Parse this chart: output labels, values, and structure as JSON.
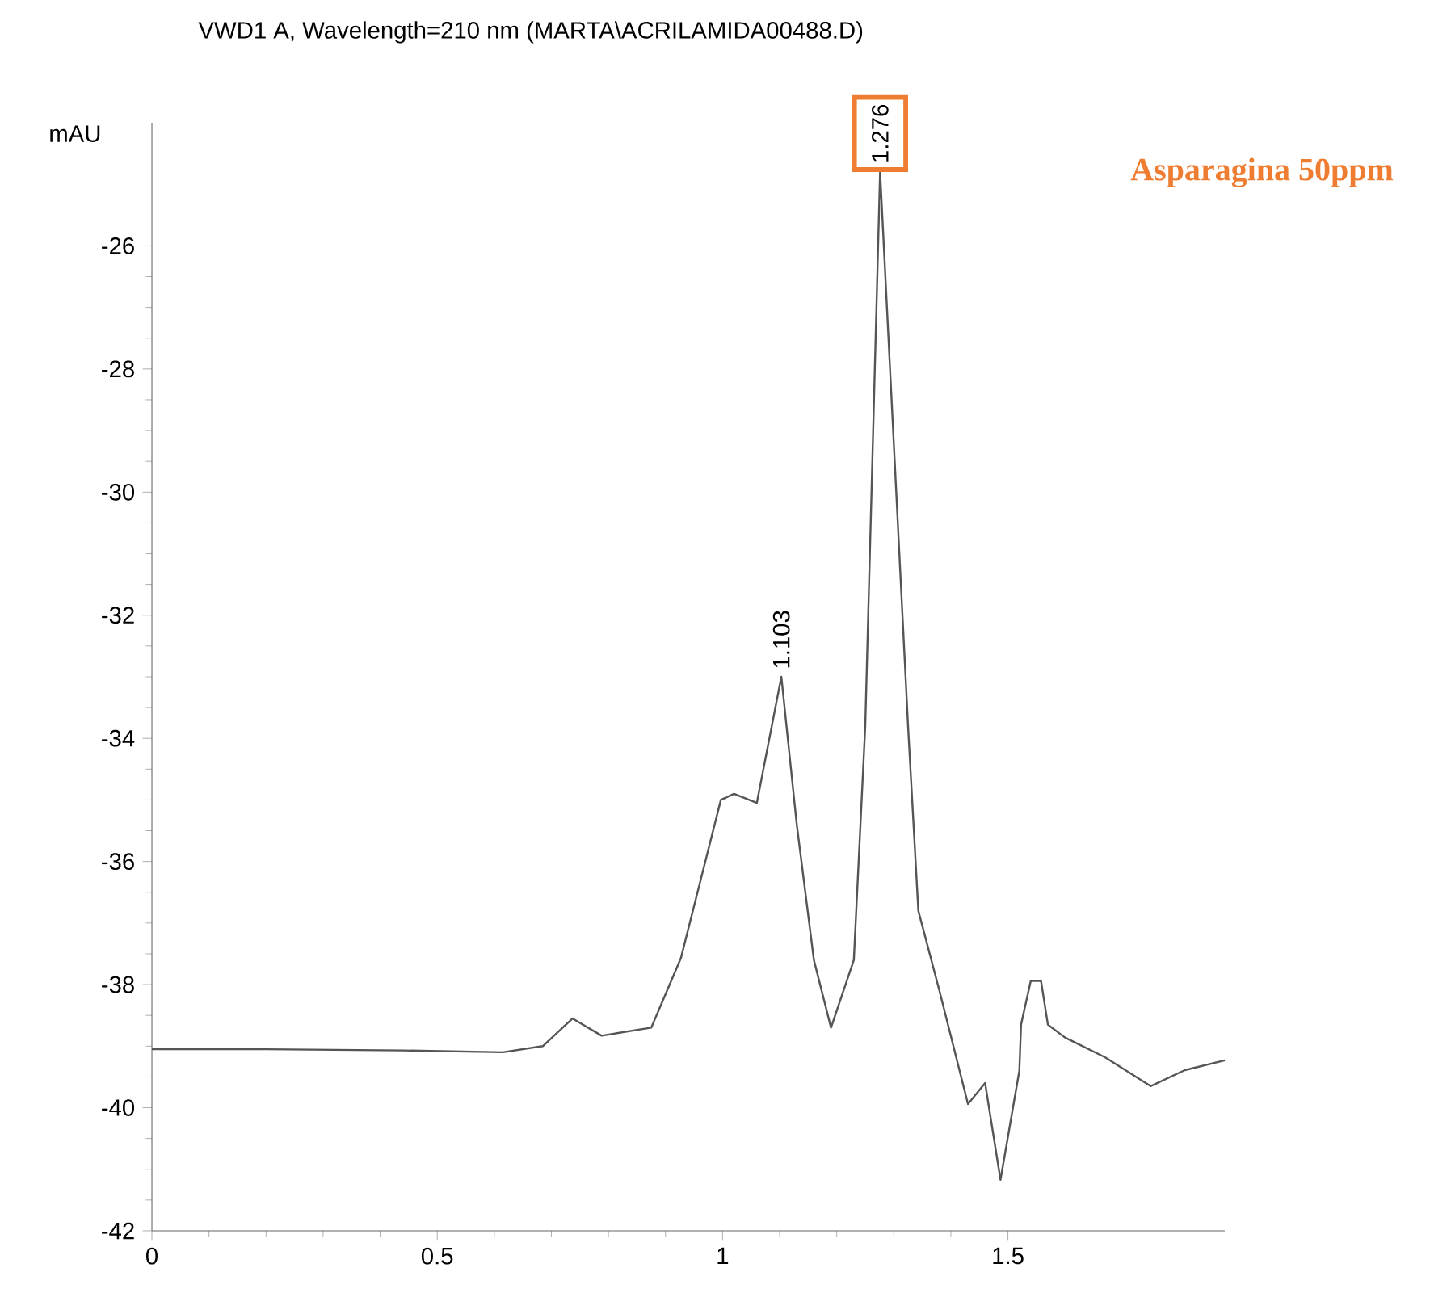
{
  "chart_data": {
    "type": "line",
    "title": "VWD1 A, Wavelength=210 nm (MARTA\\ACRILAMIDA00488.D)",
    "ylabel": "mAU",
    "x": [
      0,
      0.2,
      0.44,
      0.615,
      0.685,
      0.737,
      0.788,
      0.875,
      0.927,
      0.997,
      1.02,
      1.06,
      1.103,
      1.13,
      1.16,
      1.19,
      1.23,
      1.25,
      1.276,
      1.325,
      1.343,
      1.38,
      1.43,
      1.46,
      1.487,
      1.52,
      1.523,
      1.54,
      1.558,
      1.57,
      1.6,
      1.67,
      1.75,
      1.81,
      1.88
    ],
    "series": [
      {
        "color": "#555555",
        "values": [
          -39.05,
          -39.05,
          -39.07,
          -39.1,
          -39.0,
          -38.55,
          -38.83,
          -38.7,
          -37.57,
          -35.0,
          -34.9,
          -35.05,
          -33.0,
          -35.4,
          -37.6,
          -38.7,
          -37.6,
          -33.8,
          -24.8,
          -33.8,
          -36.8,
          -38.1,
          -39.94,
          -39.6,
          -41.17,
          -39.4,
          -38.65,
          -37.94,
          -37.94,
          -38.65,
          -38.86,
          -39.18,
          -39.65,
          -39.39,
          -39.23
        ]
      }
    ],
    "xlim": [
      0,
      1.88
    ],
    "ylim": [
      -42,
      -24
    ],
    "xticks": [
      0,
      0.5,
      1,
      1.5
    ],
    "yticks": [
      -42,
      -40,
      -38,
      -36,
      -34,
      -32,
      -30,
      -28,
      -26
    ],
    "grid": false,
    "marker": "none",
    "line_style": "solid",
    "annotations": [
      {
        "text": "1.103",
        "x": 1.103,
        "y": -33.0
      },
      {
        "text": "1.276",
        "x": 1.276,
        "y": -24.8
      },
      "Asparagina   50ppm"
    ]
  }
}
